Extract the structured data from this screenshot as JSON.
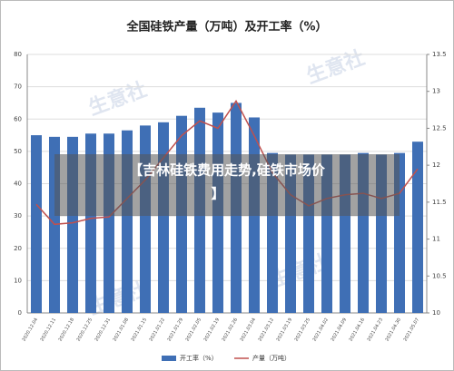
{
  "chart_data": {
    "type": "bar_line",
    "title": "全国硅铁产量（万吨）及开工率（%）",
    "categories": [
      "2020.12.04",
      "2020.12.11",
      "2020.12.18",
      "2020.12.25",
      "2020.12.31",
      "2021.01.08",
      "2021.01.15",
      "2021.01.22",
      "2021.01.29",
      "2021.02.05",
      "2021.02.19",
      "2021.02.26",
      "2021.03.04",
      "2021.03.12",
      "2021.03.19",
      "2021.03.25",
      "2021.04.02",
      "2021.04.09",
      "2021.04.16",
      "2021.04.23",
      "2021.04.30",
      "2021.05.07"
    ],
    "series": [
      {
        "name": "开工率（%）",
        "type": "bar",
        "color": "#3f6fb5",
        "values": [
          55,
          54.5,
          54.5,
          55.5,
          55.5,
          56.5,
          58,
          59,
          61,
          63.5,
          62,
          65,
          60.5,
          49.5,
          49,
          49,
          49,
          49,
          49.5,
          49,
          49.5,
          53
        ]
      },
      {
        "name": "产量（万吨）",
        "type": "line",
        "axis": "y2",
        "color": "#c0504d",
        "values": [
          11.47,
          11.2,
          11.22,
          11.28,
          11.3,
          11.55,
          11.8,
          12.1,
          12.4,
          12.6,
          12.5,
          12.87,
          12.4,
          11.9,
          11.6,
          11.45,
          11.55,
          11.6,
          11.62,
          11.55,
          11.62,
          11.95
        ]
      }
    ],
    "ylim": [
      0,
      80
    ],
    "yticks": [
      0,
      10,
      20,
      30,
      40,
      50,
      60,
      70,
      80
    ],
    "y2lim": [
      10,
      13.5
    ],
    "y2ticks": [
      {
        "value": 10,
        "label": "10"
      },
      {
        "value": 10.5,
        "label": "10.5"
      },
      {
        "value": 11,
        "label": "11"
      },
      {
        "value": 11.5,
        "label": "11.5"
      },
      {
        "value": 12,
        "label": "12"
      },
      {
        "value": 12.5,
        "label": "12.5"
      },
      {
        "value": 13,
        "label": "13"
      },
      {
        "value": 13.5,
        "label": "13.5"
      }
    ],
    "grid": true,
    "legend": "bottom"
  },
  "watermark": "生意社",
  "overlay": {
    "lines": [
      "【吉林硅铁费用走势,硅铁市场价",
      "】"
    ]
  }
}
